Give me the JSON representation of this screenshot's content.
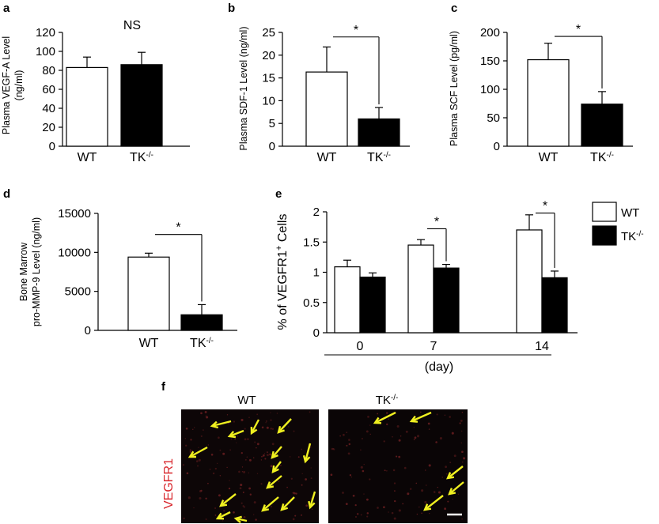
{
  "chart_data": [
    {
      "panel": "a",
      "type": "bar",
      "categories": [
        "WT",
        "TK"
      ],
      "category_sup": [
        "",
        "-/-"
      ],
      "values": [
        83,
        86
      ],
      "errors": [
        11,
        13
      ],
      "colors": [
        "#ffffff",
        "#000000"
      ],
      "ylabel_lines": [
        "Plasma VEGF-A Level",
        "(ng/ml)"
      ],
      "yticks": [
        "0",
        "20",
        "40",
        "60",
        "80",
        "100",
        "120"
      ],
      "ylim": [
        0,
        120
      ],
      "annotation": "NS",
      "brackets": []
    },
    {
      "panel": "b",
      "type": "bar",
      "categories": [
        "WT",
        "TK"
      ],
      "category_sup": [
        "",
        "-/-"
      ],
      "values": [
        16.3,
        6.0
      ],
      "errors": [
        5.5,
        2.5
      ],
      "colors": [
        "#ffffff",
        "#000000"
      ],
      "ylabel_lines": [
        "Plasma SDF-1 Level (ng/ml)"
      ],
      "yticks": [
        "0",
        "5",
        "10",
        "15",
        "20",
        "25"
      ],
      "ylim": [
        0,
        25
      ],
      "brackets": [
        {
          "from": 0,
          "to": 1,
          "level": 24,
          "label": "*"
        }
      ]
    },
    {
      "panel": "c",
      "type": "bar",
      "categories": [
        "WT",
        "TK"
      ],
      "category_sup": [
        "",
        "-/-"
      ],
      "values": [
        152,
        74
      ],
      "errors": [
        29,
        22
      ],
      "colors": [
        "#ffffff",
        "#000000"
      ],
      "ylabel_lines": [
        "Plasma SCF Level (pg/ml)"
      ],
      "yticks": [
        "0",
        "50",
        "100",
        "150",
        "200"
      ],
      "ylim": [
        0,
        200
      ],
      "brackets": [
        {
          "from": 0,
          "to": 1,
          "level": 193,
          "label": "*"
        }
      ]
    },
    {
      "panel": "d",
      "type": "bar",
      "categories": [
        "WT",
        "TK"
      ],
      "category_sup": [
        "",
        "-/-"
      ],
      "values": [
        9400,
        2000
      ],
      "errors": [
        500,
        1300
      ],
      "colors": [
        "#ffffff",
        "#000000"
      ],
      "ylabel_lines": [
        "Bone Marrow",
        "pro-MMP-9 Level (ng/ml)"
      ],
      "yticks": [
        "0",
        "5000",
        "10000",
        "15000"
      ],
      "ylim": [
        0,
        15000
      ],
      "brackets": [
        {
          "from": 0,
          "to": 1,
          "level": 12300,
          "label": "*"
        }
      ]
    },
    {
      "panel": "e",
      "type": "bar",
      "categories": [
        "0",
        "7",
        "14"
      ],
      "xlabel": "(day)",
      "ylabel_main": "% of VEGFR1",
      "ylabel_sup": "+",
      "ylabel_tail": " Cells",
      "yticks": [
        "0",
        "0.5",
        "1",
        "1.5",
        "2"
      ],
      "ylim": [
        0,
        2
      ],
      "series": [
        {
          "name": "WT",
          "sup": "",
          "values": [
            1.09,
            1.45,
            1.7
          ],
          "errors": [
            0.11,
            0.09,
            0.25
          ],
          "color": "#ffffff"
        },
        {
          "name": "TK",
          "sup": "-/-",
          "values": [
            0.92,
            1.07,
            0.91
          ],
          "errors": [
            0.07,
            0.06,
            0.11
          ],
          "color": "#000000"
        }
      ],
      "brackets": [
        {
          "group": 1,
          "level": 1.72,
          "label": "*"
        },
        {
          "group": 2,
          "level": 1.98,
          "label": "*"
        }
      ],
      "legend_position": "right"
    }
  ],
  "micrographs": {
    "panel": "f",
    "row_label": "VEGFR1",
    "images": [
      {
        "label": "WT",
        "label_sup": ""
      },
      {
        "label": "TK",
        "label_sup": "-/-"
      }
    ],
    "arrow_color": "#f0f020"
  }
}
